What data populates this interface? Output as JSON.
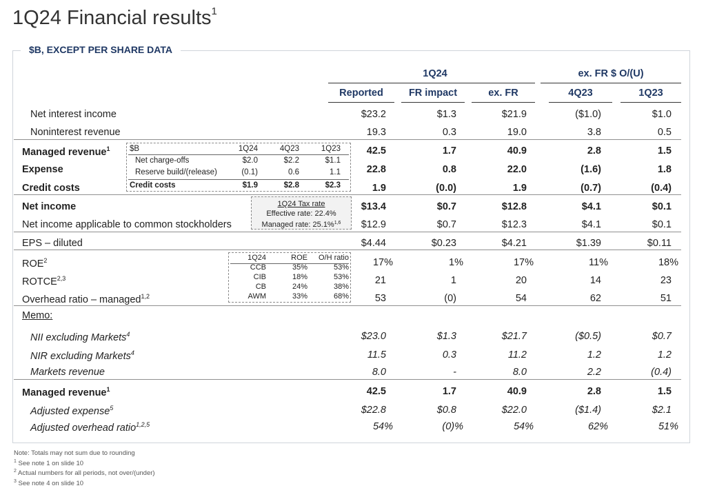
{
  "title": "1Q24 Financial results",
  "title_sup": "1",
  "section_label": "$B, EXCEPT PER SHARE DATA",
  "header": {
    "group1": "1Q24",
    "group2": "ex. FR $ O/(U)",
    "cols": [
      "Reported",
      "FR impact",
      "ex. FR",
      "4Q23",
      "1Q23"
    ]
  },
  "rows": [
    {
      "label": "Net interest income",
      "sup": "",
      "style": "",
      "values": [
        "$23.2",
        "$1.3",
        "$21.9",
        "($1.0)",
        "$1.0"
      ]
    },
    {
      "label": "Noninterest revenue",
      "sup": "",
      "style": "",
      "values": [
        "19.3",
        "0.3",
        "19.0",
        "3.8",
        "0.5"
      ]
    },
    {
      "label": "Managed revenue",
      "sup": "1",
      "style": "bold",
      "values": [
        "42.5",
        "1.7",
        "40.9",
        "2.8",
        "1.5"
      ]
    },
    {
      "label": "Expense",
      "sup": "",
      "style": "bold",
      "values": [
        "22.8",
        "0.8",
        "22.0",
        "(1.6)",
        "1.8"
      ]
    },
    {
      "label": "Credit costs",
      "sup": "",
      "style": "bold",
      "values": [
        "1.9",
        "(0.0)",
        "1.9",
        "(0.7)",
        "(0.4)"
      ]
    },
    {
      "label": "Net income",
      "sup": "",
      "style": "bold",
      "values": [
        "$13.4",
        "$0.7",
        "$12.8",
        "$4.1",
        "$0.1"
      ]
    },
    {
      "label": "Net income applicable to common stockholders",
      "sup": "",
      "style": "",
      "values": [
        "$12.9",
        "$0.7",
        "$12.3",
        "$4.1",
        "$0.1"
      ]
    },
    {
      "label": "EPS – diluted",
      "sup": "",
      "style": "",
      "values": [
        "$4.44",
        "$0.23",
        "$4.21",
        "$1.39",
        "$0.11"
      ]
    },
    {
      "label": "ROE",
      "sup": "2",
      "style": "",
      "values": [
        "17%",
        "1%",
        "17%",
        "11%",
        "18%"
      ]
    },
    {
      "label": "ROTCE",
      "sup": "2,3",
      "style": "",
      "values": [
        "21",
        "1",
        "20",
        "14",
        "23"
      ]
    },
    {
      "label": "Overhead ratio – managed",
      "sup": "1,2",
      "style": "",
      "values": [
        "53",
        "(0)",
        "54",
        "62",
        "51"
      ]
    },
    {
      "label": "NII excluding Markets",
      "sup": "4",
      "style": "ital",
      "values": [
        "$23.0",
        "$1.3",
        "$21.7",
        "($0.5)",
        "$0.7"
      ]
    },
    {
      "label": "NIR excluding Markets",
      "sup": "4",
      "style": "ital",
      "values": [
        "11.5",
        "0.3",
        "11.2",
        "1.2",
        "1.2"
      ]
    },
    {
      "label": "Markets revenue",
      "sup": "",
      "style": "ital",
      "values": [
        "8.0",
        "-",
        "8.0",
        "2.2",
        "(0.4)"
      ]
    },
    {
      "label": "Managed revenue",
      "sup": "1",
      "style": "bold",
      "values": [
        "42.5",
        "1.7",
        "40.9",
        "2.8",
        "1.5"
      ]
    },
    {
      "label": "Adjusted expense",
      "sup": "5",
      "style": "ital",
      "values": [
        "$22.8",
        "$0.8",
        "$22.0",
        "($1.4)",
        "$2.1"
      ]
    },
    {
      "label": "Adjusted overhead ratio",
      "sup": "1,2,5",
      "style": "ital",
      "values": [
        "54%",
        "(0)%",
        "54%",
        "62%",
        "51%"
      ]
    }
  ],
  "memo_label": "Memo:",
  "credit_inset": {
    "headers": [
      "$B",
      "1Q24",
      "4Q23",
      "1Q23"
    ],
    "rows": [
      {
        "label": "Net charge-offs",
        "values": [
          "$2.0",
          "$2.2",
          "$1.1"
        ]
      },
      {
        "label": "Reserve build/(release)",
        "values": [
          "(0.1)",
          "0.6",
          "1.1"
        ]
      },
      {
        "label": "Credit costs",
        "values": [
          "$1.9",
          "$2.8",
          "$2.3"
        ]
      }
    ]
  },
  "tax_box": {
    "title": "1Q24 Tax rate",
    "effective": "Effective rate: 22.4%",
    "managed": "Managed rate: 25.1%",
    "managed_sup": "1,6"
  },
  "roe_inset": {
    "headers": [
      "1Q24",
      "ROE",
      "O/H ratio"
    ],
    "rows": [
      {
        "label": "CCB",
        "values": [
          "35%",
          "53%"
        ]
      },
      {
        "label": "CIB",
        "values": [
          "18%",
          "53%"
        ]
      },
      {
        "label": "CB",
        "values": [
          "24%",
          "38%"
        ]
      },
      {
        "label": "AWM",
        "values": [
          "33%",
          "68%"
        ]
      }
    ]
  },
  "footnotes": [
    {
      "sup": "",
      "text": "Note: Totals may not sum due to rounding"
    },
    {
      "sup": "1",
      "text": "See note 1 on slide 10"
    },
    {
      "sup": "2",
      "text": "Actual numbers for all periods, not over/(under)"
    },
    {
      "sup": "3",
      "text": "See note 4 on slide 10"
    }
  ]
}
